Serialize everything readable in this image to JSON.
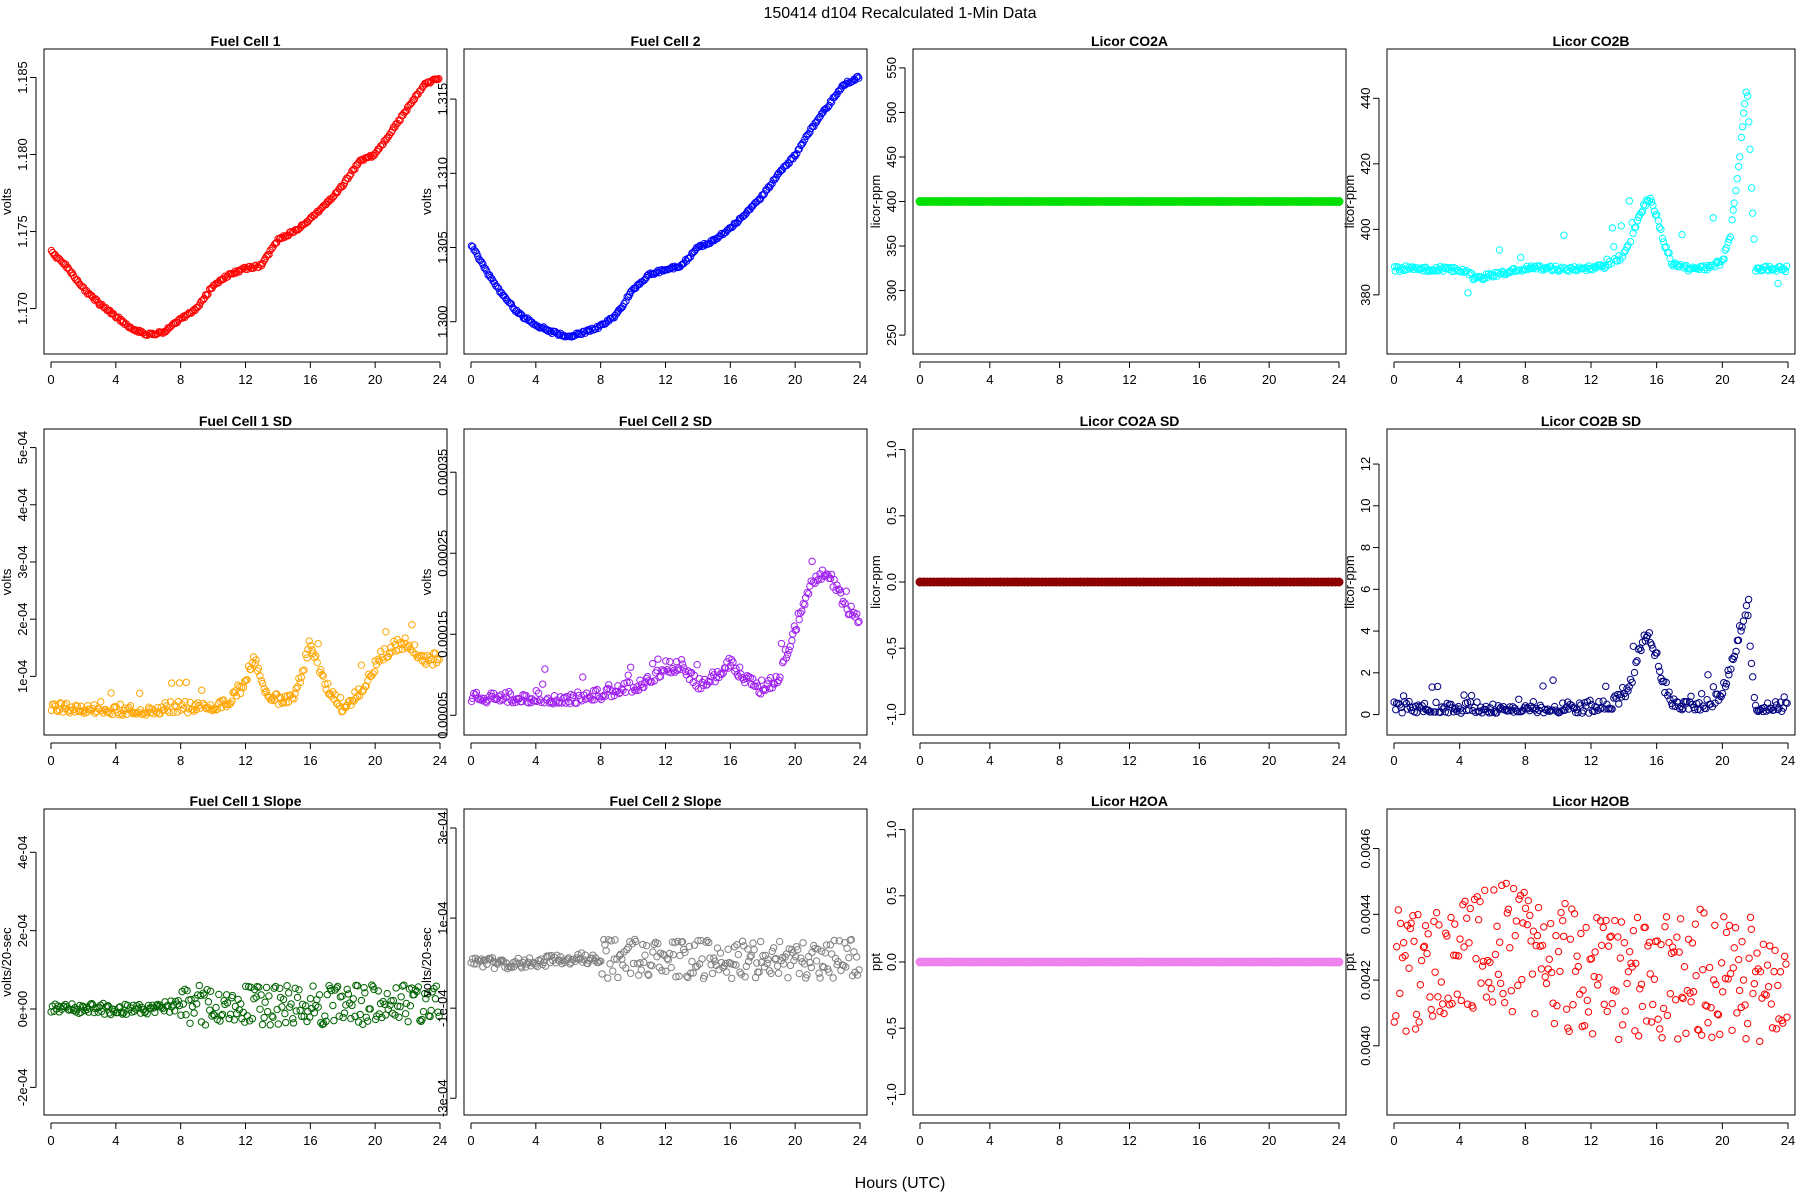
{
  "figure": {
    "title": "150414   d104   Recalculated 1-Min Data",
    "xlabel": "Hours (UTC)"
  },
  "chart_data": [
    {
      "type": "scatter",
      "title": "Fuel Cell 1",
      "ylabel": "volts",
      "color": "#ff0000",
      "marker": "circle",
      "xlim": [
        0,
        24
      ],
      "ylim": [
        1.1677,
        1.1862
      ],
      "xticks": [
        "0",
        "4",
        "8",
        "12",
        "16",
        "20",
        "24"
      ],
      "yticks": [
        "1.170",
        "1.175",
        "1.180",
        "1.185"
      ],
      "ytick_values": [
        1.17,
        1.175,
        1.18,
        1.185
      ],
      "series": [
        {
          "x": [
            0,
            1,
            2,
            3,
            4,
            5,
            6,
            7,
            8,
            9,
            10,
            11,
            12,
            13,
            14,
            15,
            16,
            17,
            18,
            19,
            20,
            21,
            22,
            23,
            24
          ],
          "y": [
            1.1737,
            1.1727,
            1.1713,
            1.1703,
            1.1695,
            1.1687,
            1.1683,
            1.1685,
            1.1693,
            1.17,
            1.1715,
            1.1722,
            1.1726,
            1.1728,
            1.1745,
            1.175,
            1.1758,
            1.1768,
            1.178,
            1.1795,
            1.18,
            1.1815,
            1.183,
            1.1845,
            1.185
          ]
        }
      ]
    },
    {
      "type": "scatter",
      "title": "Fuel Cell 2",
      "ylabel": "volts",
      "color": "#0000ff",
      "marker": "circle",
      "xlim": [
        0,
        24
      ],
      "ylim": [
        1.2985,
        1.3177
      ],
      "xticks": [
        "0",
        "4",
        "8",
        "12",
        "16",
        "20",
        "24"
      ],
      "yticks": [
        "1.300",
        "1.305",
        "1.310",
        "1.315"
      ],
      "ytick_values": [
        1.3,
        1.305,
        1.31,
        1.315
      ],
      "series": [
        {
          "x": [
            0,
            1,
            2,
            3,
            4,
            5,
            6,
            7,
            8,
            9,
            10,
            11,
            12,
            13,
            14,
            15,
            16,
            17,
            18,
            19,
            20,
            21,
            22,
            23,
            24
          ],
          "y": [
            1.3052,
            1.3033,
            1.3017,
            1.3005,
            1.2998,
            1.2993,
            1.299,
            1.2993,
            1.2997,
            1.3005,
            1.3022,
            1.3032,
            1.3035,
            1.3038,
            1.305,
            1.3055,
            1.3063,
            1.3073,
            1.3085,
            1.31,
            1.3112,
            1.313,
            1.3145,
            1.316,
            1.3165
          ]
        }
      ]
    },
    {
      "type": "scatter",
      "title": "Licor CO2A",
      "ylabel": "licor-ppm",
      "color": "#00e000",
      "marker": "filled-circle",
      "xlim": [
        0,
        24
      ],
      "ylim": [
        240,
        560
      ],
      "xticks": [
        "0",
        "4",
        "8",
        "12",
        "16",
        "20",
        "24"
      ],
      "yticks": [
        "250",
        "300",
        "350",
        "400",
        "450",
        "500",
        "550"
      ],
      "ytick_values": [
        250,
        300,
        350,
        400,
        450,
        500,
        550
      ],
      "series": [
        {
          "x": [
            0,
            24
          ],
          "y": [
            400,
            400
          ]
        }
      ]
    },
    {
      "type": "scatter",
      "title": "Licor CO2B",
      "ylabel": "licor-ppm",
      "color": "#00ffff",
      "marker": "circle",
      "xlim": [
        0,
        24
      ],
      "ylim": [
        365,
        452
      ],
      "xticks": [
        "0",
        "4",
        "8",
        "12",
        "16",
        "20",
        "24"
      ],
      "yticks": [
        "380",
        "400",
        "420",
        "440"
      ],
      "ytick_values": [
        380,
        400,
        420,
        440
      ],
      "series": [
        {
          "x": [
            0,
            2,
            4,
            5,
            8,
            10,
            12,
            13,
            14,
            14.5,
            15,
            15.5,
            16,
            16.5,
            17,
            18,
            19,
            20,
            20.5,
            21,
            21.5,
            22,
            23,
            24
          ],
          "y": [
            388,
            388,
            388,
            385,
            388,
            388,
            388,
            389,
            392,
            398,
            405,
            410,
            404,
            395,
            389,
            388,
            388,
            390,
            398,
            420,
            445,
            388,
            388,
            388
          ]
        }
      ]
    },
    {
      "type": "scatter",
      "title": "Fuel Cell 1 SD",
      "ylabel": "volts",
      "color": "#ffa500",
      "marker": "circle",
      "xlim": [
        0,
        24
      ],
      "ylim": [
        1.5e-05,
        0.000515
      ],
      "xticks": [
        "0",
        "4",
        "8",
        "12",
        "16",
        "20",
        "24"
      ],
      "yticks": [
        "1e-04",
        "2e-04",
        "3e-04",
        "4e-04",
        "5e-04"
      ],
      "ytick_values": [
        0.0001,
        0.0002,
        0.0003,
        0.0004,
        0.0005
      ],
      "series": [
        {
          "x": [
            0,
            1,
            2,
            3,
            4,
            5,
            6,
            7,
            8,
            9,
            10,
            11,
            12,
            12.5,
            13,
            14,
            15,
            16,
            17,
            18,
            19,
            20,
            21,
            22,
            23,
            24
          ],
          "y": [
            3.5e-05,
            3.5e-05,
            3.5e-05,
            3.5e-05,
            3.2e-05,
            3.2e-05,
            3.2e-05,
            3.5e-05,
            3.5e-05,
            3.8e-05,
            4e-05,
            4.5e-05,
            8e-05,
            0.00013,
            7e-05,
            5e-05,
            5e-05,
            0.00015,
            7e-05,
            3.5e-05,
            6e-05,
            0.00011,
            0.00014,
            0.00015,
            0.00012,
            0.00012
          ]
        }
      ]
    },
    {
      "type": "scatter",
      "title": "Fuel Cell 2 SD",
      "ylabel": "volts",
      "color": "#a020f0",
      "marker": "circle",
      "xlim": [
        0,
        24
      ],
      "ylim": [
        3.8e-05,
        0.000391
      ],
      "xticks": [
        "0",
        "4",
        "8",
        "12",
        "16",
        "20",
        "24"
      ],
      "yticks": [
        "0.00005",
        "0.00015",
        "0.00025",
        "0.00035"
      ],
      "ytick_values": [
        5e-05,
        0.00015,
        0.00025,
        0.00035
      ],
      "series": [
        {
          "x": [
            0,
            1,
            2,
            3,
            4,
            5,
            6,
            7,
            8,
            9,
            10,
            11,
            12,
            13,
            14,
            15,
            16,
            17,
            18,
            19,
            20,
            21,
            22,
            23,
            24
          ],
          "y": [
            6.5e-05,
            6.5e-05,
            6.5e-05,
            6.5e-05,
            6.5e-05,
            6.3e-05,
            6.3e-05,
            6.5e-05,
            6.8e-05,
            7.5e-05,
            7.8e-05,
            8.5e-05,
            0.0001,
            0.000105,
            8e-05,
            9e-05,
            0.00011,
            8.5e-05,
            7.5e-05,
            9e-05,
            0.00015,
            0.00021,
            0.00022,
            0.00018,
            0.00016
          ]
        }
      ]
    },
    {
      "type": "scatter",
      "title": "Licor CO2A SD",
      "ylabel": "licor-ppm",
      "color": "#8b0000",
      "marker": "filled-circle",
      "xlim": [
        0,
        24
      ],
      "ylim": [
        -1.08,
        1.08
      ],
      "xticks": [
        "0",
        "4",
        "8",
        "12",
        "16",
        "20",
        "24"
      ],
      "yticks": [
        "-1.0",
        "-0.5",
        "0.0",
        "0.5",
        "1.0"
      ],
      "ytick_values": [
        -1.0,
        -0.5,
        0.0,
        0.5,
        1.0
      ],
      "series": [
        {
          "x": [
            0,
            24
          ],
          "y": [
            0,
            0
          ]
        }
      ]
    },
    {
      "type": "scatter",
      "title": "Licor CO2B SD",
      "ylabel": "licor-ppm",
      "color": "#000080",
      "marker": "circle",
      "xlim": [
        0,
        24
      ],
      "ylim": [
        -0.5,
        13.2
      ],
      "xticks": [
        "0",
        "4",
        "8",
        "12",
        "16",
        "20",
        "24"
      ],
      "yticks": [
        "0",
        "2",
        "4",
        "6",
        "8",
        "10",
        "12"
      ],
      "ytick_values": [
        0,
        2,
        4,
        6,
        8,
        10,
        12
      ],
      "series": [
        {
          "x": [
            0,
            2,
            4,
            6,
            8,
            10,
            12,
            13,
            14,
            14.5,
            15,
            15.5,
            16,
            16.5,
            17,
            18,
            19,
            20,
            20.5,
            21,
            21.5,
            22,
            23,
            24
          ],
          "y": [
            0.05,
            0.05,
            0.06,
            0.05,
            0.05,
            0.05,
            0.06,
            0.1,
            0.6,
            1.5,
            3,
            3.5,
            2.5,
            1,
            0.2,
            0.2,
            0.1,
            0.8,
            2,
            3.5,
            5,
            0.1,
            0.1,
            0.05
          ]
        }
      ]
    },
    {
      "type": "scatter",
      "title": "Fuel Cell 1 Slope",
      "ylabel": "volts/20-sec",
      "color": "#006400",
      "marker": "circle",
      "xlim": [
        0,
        24
      ],
      "ylim": [
        -0.000245,
        0.000485
      ],
      "xticks": [
        "0",
        "4",
        "8",
        "12",
        "16",
        "20",
        "24"
      ],
      "yticks": [
        "-2e-04",
        "0e+00",
        "2e-04",
        "4e-04"
      ],
      "ytick_values": [
        -0.0002,
        0,
        0.0002,
        0.0004
      ],
      "series": [
        {
          "x": [
            0,
            2,
            4,
            6,
            8,
            10,
            12,
            14,
            16,
            18,
            20,
            22,
            24
          ],
          "y": [
            0,
            0,
            0,
            0,
            1e-05,
            1e-05,
            1e-05,
            1e-05,
            1e-05,
            1e-05,
            1e-05,
            1e-05,
            1e-05
          ]
        }
      ]
    },
    {
      "type": "scatter",
      "title": "Fuel Cell 2 Slope",
      "ylabel": "volts/20-sec",
      "color": "#808080",
      "marker": "circle",
      "xlim": [
        0,
        24
      ],
      "ylim": [
        -0.000315,
        0.00032
      ],
      "xticks": [
        "0",
        "4",
        "8",
        "12",
        "16",
        "20",
        "24"
      ],
      "yticks": [
        "-3e-04",
        "-1e-04",
        "1e-04",
        "3e-04"
      ],
      "ytick_values": [
        -0.0003,
        -0.0001,
        0.0001,
        0.0003
      ],
      "series": [
        {
          "x": [
            0,
            2,
            4,
            6,
            8,
            10,
            12,
            14,
            16,
            18,
            20,
            22,
            24
          ],
          "y": [
            0,
            0,
            0,
            1e-05,
            1e-05,
            1e-05,
            1e-05,
            1e-05,
            1e-05,
            1e-05,
            1e-05,
            1e-05,
            1e-05
          ]
        }
      ]
    },
    {
      "type": "scatter",
      "title": "Licor H2OA",
      "ylabel": "ppt",
      "color": "#ee82ee",
      "marker": "filled-circle",
      "xlim": [
        0,
        24
      ],
      "ylim": [
        -1.08,
        1.08
      ],
      "xticks": [
        "0",
        "4",
        "8",
        "12",
        "16",
        "20",
        "24"
      ],
      "yticks": [
        "-1.0",
        "-0.5",
        "0.0",
        "0.5",
        "1.0"
      ],
      "ytick_values": [
        -1.0,
        -0.5,
        0.0,
        0.5,
        1.0
      ],
      "series": [
        {
          "x": [
            0,
            24
          ],
          "y": [
            0,
            0
          ]
        }
      ]
    },
    {
      "type": "scatter",
      "title": "Licor H2OB",
      "ylabel": "ppt",
      "color": "#ff0000",
      "marker": "circle",
      "xlim": [
        0,
        24
      ],
      "ylim": [
        0.00382,
        0.00469
      ],
      "xticks": [
        "0",
        "4",
        "8",
        "12",
        "16",
        "20",
        "24"
      ],
      "yticks": [
        "0.0040",
        "0.0042",
        "0.0044",
        "0.0046"
      ],
      "ytick_values": [
        0.004,
        0.0042,
        0.0044,
        0.0046
      ],
      "series": [
        {
          "x": [
            0,
            2,
            4,
            6,
            8,
            10,
            12,
            14,
            16,
            18,
            20,
            22,
            24
          ],
          "y": [
            0.00423,
            0.00425,
            0.00428,
            0.0043,
            0.0043,
            0.00425,
            0.00422,
            0.0042,
            0.0042,
            0.00422,
            0.00422,
            0.00421,
            0.0042
          ]
        }
      ]
    }
  ]
}
